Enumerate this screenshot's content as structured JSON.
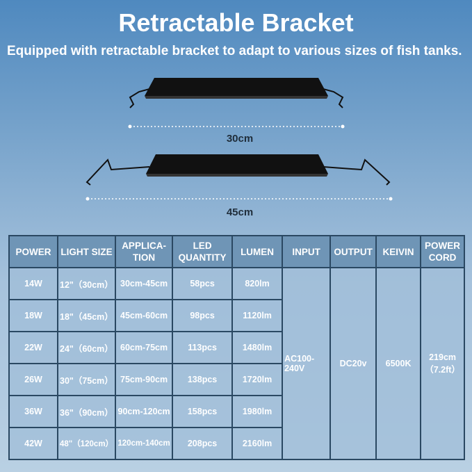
{
  "title": "Retractable Bracket",
  "subtitle": "Equipped with retractable bracket to adapt to various sizes of fish tanks.",
  "dimensions": {
    "small": "30cm",
    "large": "45cm"
  },
  "table": {
    "headers": [
      "POWER",
      "LIGHT SIZE",
      "APPLICA-TION",
      "LED QUANTITY",
      "LUMEN",
      "INPUT",
      "OUTPUT",
      "KEIVIN",
      "POWER CORD"
    ],
    "rows": [
      [
        "14W",
        "12\"（30cm）",
        "30cm-45cm",
        "58pcs",
        "820lm"
      ],
      [
        "18W",
        "18\"（45cm）",
        "45cm-60cm",
        "98pcs",
        "1120lm"
      ],
      [
        "22W",
        "24\"（60cm）",
        "60cm-75cm",
        "113pcs",
        "1480lm"
      ],
      [
        "26W",
        "30\"（75cm）",
        "75cm-90cm",
        "138pcs",
        "1720lm"
      ],
      [
        "36W",
        "36\"（90cm）",
        "90cm-120cm",
        "158pcs",
        "1980lm"
      ],
      [
        "42W",
        "48\"（120cm）",
        "120cm-140cm",
        "208pcs",
        "2160lm"
      ]
    ],
    "input": "AC100-240V",
    "output": "DC20v",
    "kelvin": "6500K",
    "power_cord": "219cm（7.2ft）"
  }
}
